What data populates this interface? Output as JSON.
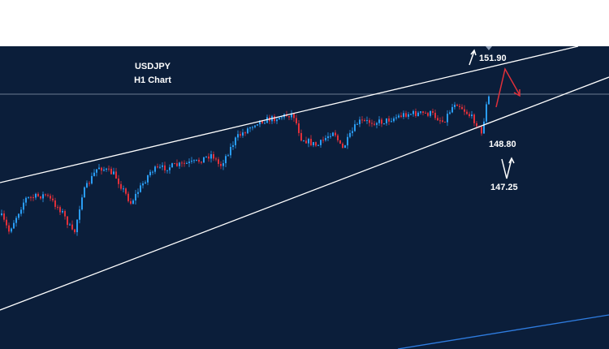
{
  "header": {
    "symbol": "USDJPY",
    "timeframe": "H1 Chart"
  },
  "annotations": {
    "resistance": "151.90",
    "support": "148.80",
    "target": "147.25"
  }
}
